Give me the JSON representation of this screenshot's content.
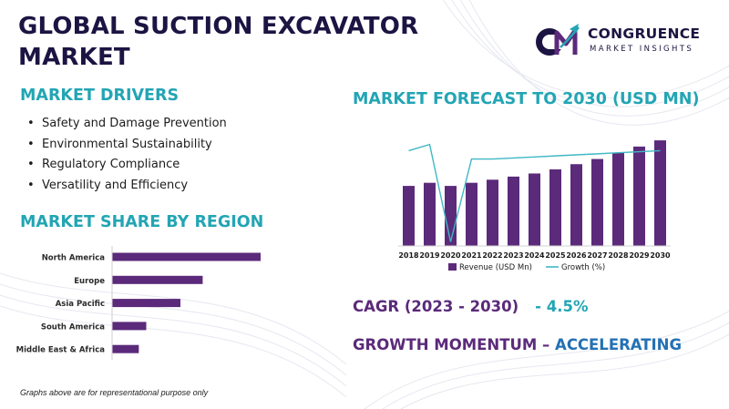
{
  "page": {
    "title_line1": "GLOBAL SUCTION EXCAVATOR",
    "title_line2": "MARKET",
    "footnote": "Graphs above are for representational purpose only"
  },
  "logo": {
    "name": "CONGRUENCE",
    "subtitle": "MARKET INSIGHTS",
    "mark_letters": "CM"
  },
  "colors": {
    "title": "#1c1442",
    "section_heading": "#23a5b4",
    "bar": "#5b2a7a",
    "growth_line": "#3fb8c4",
    "cagr_label": "#5b2a7a",
    "cagr_value": "#23a5b4",
    "momentum_value": "#2470b4"
  },
  "drivers": {
    "heading": "MARKET DRIVERS",
    "items": [
      "Safety and Damage Prevention",
      "Environmental Sustainability",
      "Regulatory Compliance",
      "Versatility and Efficiency"
    ]
  },
  "region": {
    "heading": "MARKET SHARE BY REGION"
  },
  "forecast": {
    "heading": "MARKET FORECAST TO 2030 (USD MN)"
  },
  "cagr": {
    "label": "CAGR (2023 - 2030)",
    "value": "- 4.5%"
  },
  "momentum": {
    "label": "GROWTH MOMENTUM – ",
    "value": "ACCELERATING"
  },
  "chart_data": [
    {
      "type": "bar",
      "orientation": "horizontal",
      "title": "MARKET SHARE BY REGION",
      "categories": [
        "North America",
        "Europe",
        "Asia Pacific",
        "South America",
        "Middle East & Africa"
      ],
      "values": [
        100,
        61,
        46,
        23,
        18
      ],
      "xlim": [
        0,
        100
      ],
      "grid": false
    },
    {
      "type": "bar",
      "title": "MARKET FORECAST TO 2030 (USD MN)",
      "categories": [
        "2018",
        "2019",
        "2020",
        "2021",
        "2022",
        "2023",
        "2024",
        "2025",
        "2026",
        "2027",
        "2028",
        "2029",
        "2030"
      ],
      "series": [
        {
          "name": "Revenue (USD Mn)",
          "type": "bar",
          "values": [
            58,
            61,
            58,
            61,
            64,
            67,
            70,
            74,
            79,
            84,
            90,
            96,
            102
          ]
        },
        {
          "name": "Growth (%)",
          "type": "line",
          "values": [
            92,
            98,
            4,
            84,
            84,
            85,
            86,
            87,
            88,
            89,
            90,
            91,
            92
          ]
        }
      ],
      "ylim": [
        0,
        110
      ],
      "legend": "bottom",
      "grid": false
    }
  ]
}
